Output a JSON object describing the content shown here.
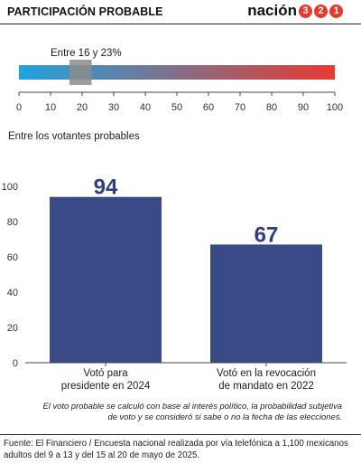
{
  "header": {
    "title": "PARTICIPACIÓN PROBABLE",
    "brand_text": "nación",
    "brand_digits": [
      "3",
      "2",
      "1"
    ]
  },
  "range_bar": {
    "label": "Entre 16 y 23%",
    "range": [
      16,
      23
    ],
    "ticks": [
      "0",
      "10",
      "20",
      "30",
      "40",
      "50",
      "60",
      "70",
      "80",
      "90",
      "100"
    ],
    "gradient_colors": [
      "#1fa3e0",
      "#e83a30"
    ],
    "marker_color": "#8c8c8c"
  },
  "subtitle": "Entre los votantes probables",
  "chart_data": {
    "type": "bar",
    "title": "",
    "categories": [
      [
        "Votó para",
        "presidente en 2024"
      ],
      [
        "Votó en la revocación",
        "de mandato en 2022"
      ]
    ],
    "values": [
      94,
      67
    ],
    "data_labels": [
      "94",
      "67"
    ],
    "ylim": [
      0,
      100
    ],
    "yticks": [
      "0",
      "20",
      "40",
      "60",
      "80",
      "100"
    ],
    "bar_color": "#3a4a86",
    "label_color": "#2e3e7e",
    "grid": false
  },
  "note": "El voto probable se calculó con base al interés político, la probabilidad subjetiva de voto y se consideró si sabe o no la fecha de las elecciones.",
  "source": "Fuente: El Financiero / Encuesta nacional realizada por vía telefónica a 1,100 mexicanos adultos del 9 a 13 y del 15 al 20 de mayo de 2025."
}
